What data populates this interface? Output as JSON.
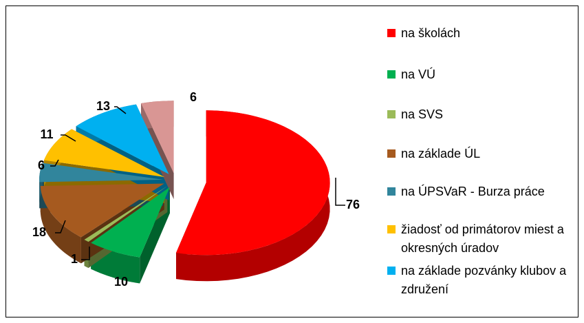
{
  "chart_data": {
    "type": "pie",
    "categories": [
      "na školách",
      "na VÚ",
      "na SVS",
      "na základe ÚL",
      "na ÚPSVaR - Burza práce",
      "žiadosť od primátorov miest a okresných úradov",
      "na základe pozvánky klubov a združení",
      null
    ],
    "values": [
      76,
      10,
      1,
      18,
      6,
      11,
      13,
      6
    ],
    "colors": [
      "#ff0000",
      "#00b050",
      "#9bbb59",
      "#a65a1f",
      "#31859c",
      "#ffc000",
      "#00b0f0",
      "#d99694"
    ]
  }
}
